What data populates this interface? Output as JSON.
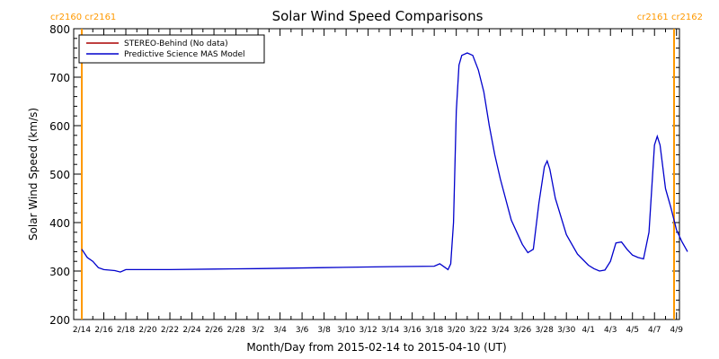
{
  "chart_data": {
    "type": "line",
    "title": "Solar Wind Speed Comparisons",
    "xlabel": "Month/Day from 2015-02-14 to 2015-04-10 (UT)",
    "ylabel": "Solar Wind Speed (km/s)",
    "ylim": [
      200,
      800
    ],
    "xlim": [
      "2015-02-14",
      "2015-04-10"
    ],
    "y_ticks": [
      200,
      300,
      400,
      500,
      600,
      700,
      800
    ],
    "x_ticks": [
      {
        "date": "2015-02-14",
        "label": "2/14"
      },
      {
        "date": "2015-02-16",
        "label": "2/16"
      },
      {
        "date": "2015-02-18",
        "label": "2/18"
      },
      {
        "date": "2015-02-20",
        "label": "2/20"
      },
      {
        "date": "2015-02-22",
        "label": "2/22"
      },
      {
        "date": "2015-02-24",
        "label": "2/24"
      },
      {
        "date": "2015-02-26",
        "label": "2/26"
      },
      {
        "date": "2015-02-28",
        "label": "2/28"
      },
      {
        "date": "2015-03-02",
        "label": "3/2"
      },
      {
        "date": "2015-03-04",
        "label": "3/4"
      },
      {
        "date": "2015-03-06",
        "label": "3/6"
      },
      {
        "date": "2015-03-08",
        "label": "3/8"
      },
      {
        "date": "2015-03-10",
        "label": "3/10"
      },
      {
        "date": "2015-03-12",
        "label": "3/12"
      },
      {
        "date": "2015-03-14",
        "label": "3/14"
      },
      {
        "date": "2015-03-16",
        "label": "3/16"
      },
      {
        "date": "2015-03-18",
        "label": "3/18"
      },
      {
        "date": "2015-03-20",
        "label": "3/20"
      },
      {
        "date": "2015-03-22",
        "label": "3/22"
      },
      {
        "date": "2015-03-24",
        "label": "3/24"
      },
      {
        "date": "2015-03-26",
        "label": "3/26"
      },
      {
        "date": "2015-03-28",
        "label": "3/28"
      },
      {
        "date": "2015-03-30",
        "label": "3/30"
      },
      {
        "date": "2015-04-01",
        "label": "4/1"
      },
      {
        "date": "2015-04-03",
        "label": "4/3"
      },
      {
        "date": "2015-04-05",
        "label": "4/5"
      },
      {
        "date": "2015-04-07",
        "label": "4/7"
      },
      {
        "date": "2015-04-09",
        "label": "4/9"
      }
    ],
    "legend": {
      "placement": "top-left",
      "entries": [
        {
          "label": "STEREO-Behind (No data)",
          "color": "#aa0000"
        },
        {
          "label": "Predictive Science MAS Model",
          "color": "#0000cc"
        }
      ]
    },
    "markers": [
      {
        "date": "2015-02-14",
        "label": "cr2160 cr2161",
        "side": "left",
        "color": "#ff9900"
      },
      {
        "date": "2015-04-10",
        "label": "cr2161 cr2162",
        "side": "right",
        "color": "#ff9900"
      }
    ],
    "series": [
      {
        "name": "Predictive Science MAS Model",
        "color": "#0000cc",
        "points": [
          {
            "x": "2015-02-14T00:00",
            "y": 345
          },
          {
            "x": "2015-02-14T12:00",
            "y": 328
          },
          {
            "x": "2015-02-15T00:00",
            "y": 320
          },
          {
            "x": "2015-02-15T12:00",
            "y": 307
          },
          {
            "x": "2015-02-16T00:00",
            "y": 303
          },
          {
            "x": "2015-02-17T00:00",
            "y": 301
          },
          {
            "x": "2015-02-17T12:00",
            "y": 298
          },
          {
            "x": "2015-02-18T00:00",
            "y": 303
          },
          {
            "x": "2015-02-22T00:00",
            "y": 303
          },
          {
            "x": "2015-02-26T00:00",
            "y": 304
          },
          {
            "x": "2015-03-02T00:00",
            "y": 305
          },
          {
            "x": "2015-03-08T00:00",
            "y": 307
          },
          {
            "x": "2015-03-14T00:00",
            "y": 309
          },
          {
            "x": "2015-03-18T00:00",
            "y": 310
          },
          {
            "x": "2015-03-18T12:00",
            "y": 315
          },
          {
            "x": "2015-03-19T00:00",
            "y": 307
          },
          {
            "x": "2015-03-19T06:00",
            "y": 303
          },
          {
            "x": "2015-03-19T12:00",
            "y": 315
          },
          {
            "x": "2015-03-19T18:00",
            "y": 400
          },
          {
            "x": "2015-03-20T00:00",
            "y": 630
          },
          {
            "x": "2015-03-20T06:00",
            "y": 725
          },
          {
            "x": "2015-03-20T12:00",
            "y": 745
          },
          {
            "x": "2015-03-21T00:00",
            "y": 750
          },
          {
            "x": "2015-03-21T12:00",
            "y": 745
          },
          {
            "x": "2015-03-22T00:00",
            "y": 715
          },
          {
            "x": "2015-03-22T12:00",
            "y": 670
          },
          {
            "x": "2015-03-23T00:00",
            "y": 600
          },
          {
            "x": "2015-03-23T12:00",
            "y": 540
          },
          {
            "x": "2015-03-24T00:00",
            "y": 490
          },
          {
            "x": "2015-03-25T00:00",
            "y": 405
          },
          {
            "x": "2015-03-26T00:00",
            "y": 355
          },
          {
            "x": "2015-03-26T12:00",
            "y": 338
          },
          {
            "x": "2015-03-27T00:00",
            "y": 345
          },
          {
            "x": "2015-03-27T12:00",
            "y": 440
          },
          {
            "x": "2015-03-28T00:00",
            "y": 515
          },
          {
            "x": "2015-03-28T06:00",
            "y": 527
          },
          {
            "x": "2015-03-28T12:00",
            "y": 510
          },
          {
            "x": "2015-03-29T00:00",
            "y": 450
          },
          {
            "x": "2015-03-30T00:00",
            "y": 375
          },
          {
            "x": "2015-03-31T00:00",
            "y": 335
          },
          {
            "x": "2015-04-01T00:00",
            "y": 312
          },
          {
            "x": "2015-04-01T12:00",
            "y": 305
          },
          {
            "x": "2015-04-02T00:00",
            "y": 300
          },
          {
            "x": "2015-04-02T12:00",
            "y": 302
          },
          {
            "x": "2015-04-03T00:00",
            "y": 320
          },
          {
            "x": "2015-04-03T12:00",
            "y": 358
          },
          {
            "x": "2015-04-04T00:00",
            "y": 360
          },
          {
            "x": "2015-04-04T12:00",
            "y": 345
          },
          {
            "x": "2015-04-05T00:00",
            "y": 333
          },
          {
            "x": "2015-04-05T12:00",
            "y": 328
          },
          {
            "x": "2015-04-06T00:00",
            "y": 325
          },
          {
            "x": "2015-04-06T12:00",
            "y": 380
          },
          {
            "x": "2015-04-07T00:00",
            "y": 560
          },
          {
            "x": "2015-04-07T06:00",
            "y": 578
          },
          {
            "x": "2015-04-07T12:00",
            "y": 560
          },
          {
            "x": "2015-04-08T00:00",
            "y": 470
          },
          {
            "x": "2015-04-08T12:00",
            "y": 430
          },
          {
            "x": "2015-04-09T00:00",
            "y": 385
          },
          {
            "x": "2015-04-09T12:00",
            "y": 360
          },
          {
            "x": "2015-04-10T00:00",
            "y": 340
          }
        ]
      }
    ]
  }
}
